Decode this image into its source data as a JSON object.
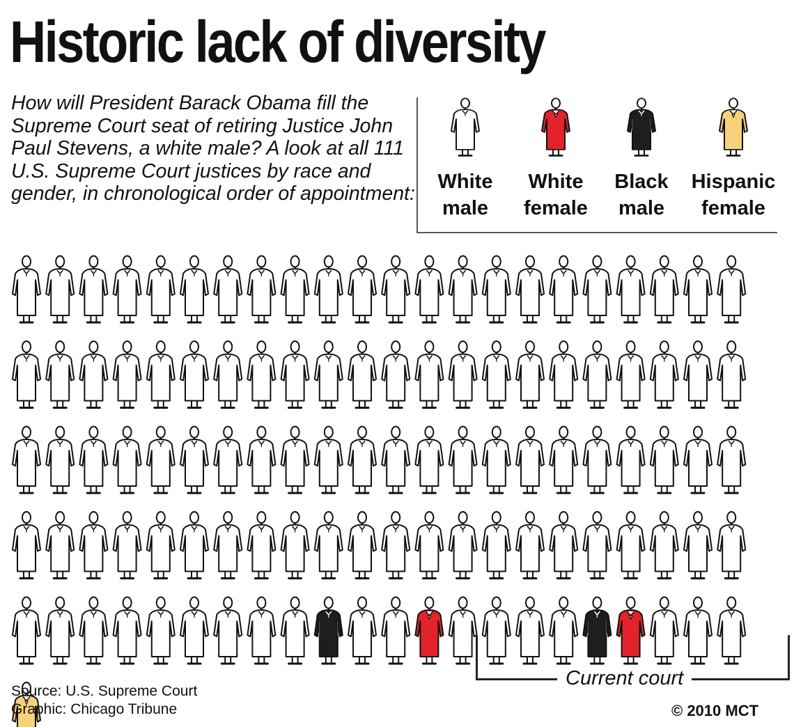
{
  "title": "Historic lack of diversity",
  "intro": "How will President Barack Obama fill the Supreme Court seat of retiring Justice John Paul Stevens, a white male? A look at all 111 U.S. Supreme Court justices by race and gender, in chronological order of appointment:",
  "legend": [
    {
      "key": "white_male",
      "line1": "White",
      "line2": "male",
      "fill": "#ffffff"
    },
    {
      "key": "white_female",
      "line1": "White",
      "line2": "female",
      "fill": "#e2232a"
    },
    {
      "key": "black_male",
      "line1": "Black",
      "line2": "male",
      "fill": "#1e1e1e"
    },
    {
      "key": "hispanic_female",
      "line1": "Hispanic",
      "line2": "female",
      "fill": "#f7d27c"
    }
  ],
  "chart_data": {
    "type": "pictogram",
    "total": 111,
    "categories": [
      "White male",
      "White female",
      "Black male",
      "Hispanic female"
    ],
    "counts": [
      106,
      2,
      2,
      1
    ],
    "per_row": 22,
    "sequence": [
      "white_male",
      "white_male",
      "white_male",
      "white_male",
      "white_male",
      "white_male",
      "white_male",
      "white_male",
      "white_male",
      "white_male",
      "white_male",
      "white_male",
      "white_male",
      "white_male",
      "white_male",
      "white_male",
      "white_male",
      "white_male",
      "white_male",
      "white_male",
      "white_male",
      "white_male",
      "white_male",
      "white_male",
      "white_male",
      "white_male",
      "white_male",
      "white_male",
      "white_male",
      "white_male",
      "white_male",
      "white_male",
      "white_male",
      "white_male",
      "white_male",
      "white_male",
      "white_male",
      "white_male",
      "white_male",
      "white_male",
      "white_male",
      "white_male",
      "white_male",
      "white_male",
      "white_male",
      "white_male",
      "white_male",
      "white_male",
      "white_male",
      "white_male",
      "white_male",
      "white_male",
      "white_male",
      "white_male",
      "white_male",
      "white_male",
      "white_male",
      "white_male",
      "white_male",
      "white_male",
      "white_male",
      "white_male",
      "white_male",
      "white_male",
      "white_male",
      "white_male",
      "white_male",
      "white_male",
      "white_male",
      "white_male",
      "white_male",
      "white_male",
      "white_male",
      "white_male",
      "white_male",
      "white_male",
      "white_male",
      "white_male",
      "white_male",
      "white_male",
      "white_male",
      "white_male",
      "white_male",
      "white_male",
      "white_male",
      "white_male",
      "white_male",
      "white_male",
      "white_male",
      "white_male",
      "white_male",
      "white_male",
      "white_male",
      "white_male",
      "white_male",
      "white_male",
      "white_male",
      "black_male",
      "white_male",
      "white_male",
      "white_female",
      "white_male",
      "white_male",
      "white_male",
      "white_male",
      "black_male",
      "white_female",
      "white_male",
      "white_male",
      "white_male",
      "hispanic_female"
    ],
    "current_court_count": 9,
    "current_court_label": "Current court"
  },
  "source": "Source: U.S. Supreme Court",
  "graphic": "Graphic: Chicago Tribune",
  "credit": "© 2010 MCT"
}
